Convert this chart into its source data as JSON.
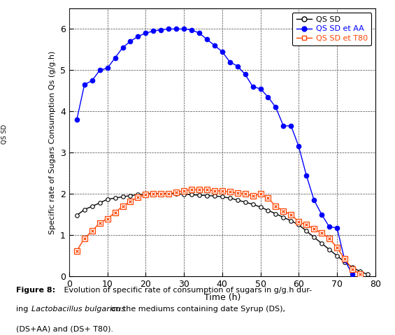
{
  "xlabel": "Time (h)",
  "ylabel": "Specific rate of Sugars Consumption Qs (g/g.h)",
  "xlim": [
    0,
    80
  ],
  "ylim": [
    0,
    6.5
  ],
  "xticks": [
    0,
    10,
    20,
    30,
    40,
    50,
    60,
    70,
    80
  ],
  "yticks": [
    0,
    1,
    2,
    3,
    4,
    5,
    6
  ],
  "qs_sd_x": [
    2,
    4,
    6,
    8,
    10,
    12,
    14,
    16,
    18,
    20,
    22,
    24,
    26,
    28,
    30,
    32,
    34,
    36,
    38,
    40,
    42,
    44,
    46,
    48,
    50,
    52,
    54,
    56,
    58,
    60,
    62,
    64,
    66,
    68,
    70,
    72,
    74,
    76,
    78
  ],
  "qs_sd_y": [
    1.48,
    1.62,
    1.7,
    1.78,
    1.87,
    1.9,
    1.93,
    1.96,
    1.98,
    2.0,
    2.01,
    2.0,
    2.01,
    2.0,
    1.99,
    1.98,
    1.97,
    1.96,
    1.95,
    1.93,
    1.9,
    1.85,
    1.8,
    1.75,
    1.68,
    1.6,
    1.52,
    1.43,
    1.35,
    1.25,
    1.1,
    0.95,
    0.8,
    0.65,
    0.5,
    0.35,
    0.22,
    0.12,
    0.05
  ],
  "qs_sd_aa_x": [
    2,
    4,
    6,
    8,
    10,
    12,
    14,
    16,
    18,
    20,
    22,
    24,
    26,
    28,
    30,
    32,
    34,
    36,
    38,
    40,
    42,
    44,
    46,
    48,
    50,
    52,
    54,
    56,
    58,
    60,
    62,
    64,
    66,
    68,
    70,
    72,
    74
  ],
  "qs_sd_aa_y": [
    3.8,
    4.65,
    4.75,
    5.0,
    5.05,
    5.3,
    5.55,
    5.7,
    5.82,
    5.9,
    5.95,
    5.98,
    6.0,
    6.0,
    6.0,
    5.98,
    5.9,
    5.75,
    5.6,
    5.45,
    5.2,
    5.1,
    4.9,
    4.6,
    4.55,
    4.35,
    4.1,
    3.65,
    3.65,
    3.15,
    2.45,
    1.85,
    1.5,
    1.2,
    1.18,
    0.4,
    0.05
  ],
  "qs_sd_t80_x": [
    2,
    4,
    6,
    8,
    10,
    12,
    14,
    16,
    18,
    20,
    22,
    24,
    26,
    28,
    30,
    32,
    34,
    36,
    38,
    40,
    42,
    44,
    46,
    48,
    50,
    52,
    54,
    56,
    58,
    60,
    62,
    64,
    66,
    68,
    70,
    72,
    74,
    76
  ],
  "qs_sd_t80_y": [
    0.62,
    0.92,
    1.1,
    1.3,
    1.4,
    1.55,
    1.7,
    1.82,
    1.92,
    1.98,
    2.0,
    2.0,
    2.01,
    2.03,
    2.08,
    2.1,
    2.1,
    2.1,
    2.08,
    2.07,
    2.05,
    2.02,
    2.0,
    1.95,
    2.0,
    1.9,
    1.7,
    1.58,
    1.5,
    1.32,
    1.25,
    1.15,
    1.05,
    0.92,
    0.7,
    0.42,
    0.18,
    0.05
  ],
  "line_color_sd": "#000000",
  "line_color_aa": "#0000ff",
  "line_color_t80": "#ff4400",
  "legend_labels": [
    "QS SD",
    "QS SD et AA",
    "QS SD et T80"
  ],
  "rotated_label": "QS SD",
  "background_color": "#ffffff"
}
